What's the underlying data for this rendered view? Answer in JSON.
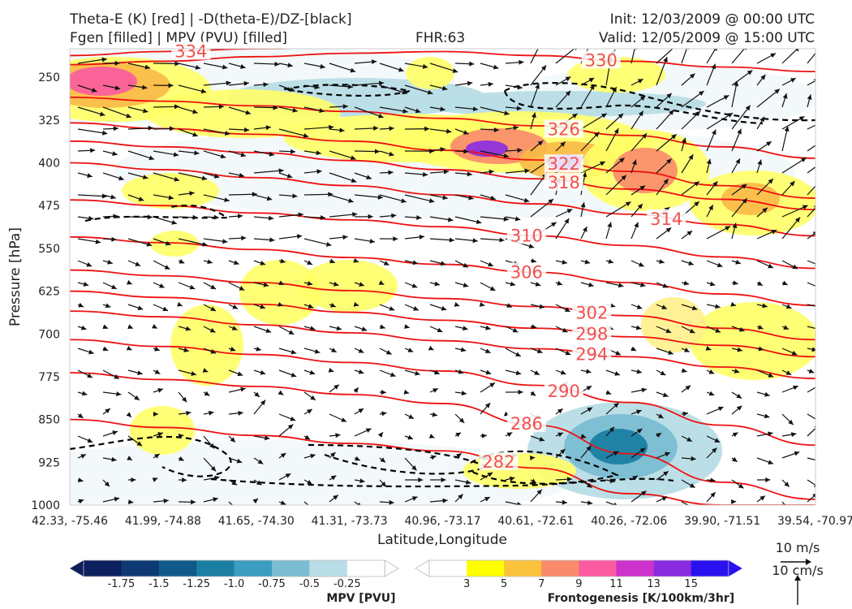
{
  "header": {
    "title_left_1": "Theta-E (K) [red] | -D(theta-E)/DZ-[black]",
    "title_left_2": "Fgen [filled] | MPV (PVU) [filled]",
    "fhr": "FHR:63",
    "init": "Init: 12/03/2009 @ 00:00 UTC",
    "valid": "Valid: 12/05/2009 @ 15:00 UTC"
  },
  "colors": {
    "theta_e": "#ee1111",
    "stability": "#000000",
    "wind_arrow": "#111111",
    "mpv": [
      "#0c1f5e",
      "#0d3a73",
      "#0f5a8a",
      "#1b7fa3",
      "#3b9dbf",
      "#7bbdd3",
      "#b8dde6",
      "#f2f8fa"
    ],
    "fgen": [
      "#ffff66",
      "#fff08a",
      "#fbb947",
      "#fb8a6b",
      "#fb5aa1",
      "#cc33cc",
      "#8a2be2",
      "#3a1fe6"
    ]
  },
  "chart_data": {
    "type": "cross-section",
    "ylabel": "Pressure [hPa]",
    "xlabel": "Latitude,Longitude",
    "ylim": [
      1000,
      200
    ],
    "y_ticks": [
      250,
      325,
      400,
      475,
      550,
      625,
      700,
      775,
      850,
      925,
      1000
    ],
    "x_ticks": [
      "42.33, -75.46",
      "41.99, -74.88",
      "41.65, -74.30",
      "41.31, -73.73",
      "40.96, -73.17",
      "40.61, -72.61",
      "40.26, -72.06",
      "39.90, -71.51",
      "39.54, -70.97"
    ],
    "theta_e_isentropes": [
      {
        "label": "334",
        "levels": [
          212,
          205,
          200,
          198,
          196,
          194,
          192,
          190,
          188
        ]
      },
      {
        "label": "330",
        "levels": [
          228,
          222,
          214,
          208,
          205,
          212,
          222,
          232,
          240
        ]
      },
      {
        "label": "326",
        "levels": [
          285,
          292,
          300,
          310,
          322,
          335,
          352,
          372,
          392
        ]
      },
      {
        "label": "322",
        "levels": [
          330,
          340,
          350,
          362,
          378,
          395,
          415,
          440,
          462
        ]
      },
      {
        "label": "318",
        "levels": [
          362,
          372,
          382,
          396,
          412,
          428,
          446,
          464,
          482
        ]
      },
      {
        "label": "314",
        "levels": [
          400,
          412,
          426,
          440,
          456,
          472,
          490,
          508,
          528
        ]
      },
      {
        "label": "310",
        "levels": [
          465,
          475,
          488,
          500,
          512,
          528,
          545,
          565,
          585
        ]
      },
      {
        "label": "306",
        "levels": [
          530,
          540,
          552,
          566,
          578,
          592,
          610,
          630,
          650
        ]
      },
      {
        "label": "302",
        "levels": [
          588,
          598,
          610,
          624,
          638,
          652,
          668,
          690,
          710
        ]
      },
      {
        "label": "298",
        "levels": [
          625,
          636,
          648,
          662,
          676,
          690,
          705,
          720,
          740
        ]
      },
      {
        "label": "294",
        "levels": [
          660,
          670,
          684,
          698,
          712,
          726,
          740,
          758,
          778
        ]
      },
      {
        "label": "290",
        "levels": [
          710,
          722,
          736,
          750,
          765,
          790,
          820,
          860,
          895
        ]
      },
      {
        "label": "286",
        "levels": [
          768,
          780,
          792,
          806,
          822,
          860,
          910,
          960,
          990
        ]
      },
      {
        "label": "282",
        "levels": [
          850,
          864,
          878,
          892,
          905,
          935,
          980,
          1000,
          1000
        ]
      }
    ],
    "stability_contours": "dashed black",
    "legend_mpv": {
      "label": "MPV [PVU]",
      "ticks": [
        "-1.75",
        "-1.5",
        "-1.25",
        "-1.0",
        "-0.75",
        "-0.5",
        "-0.25"
      ]
    },
    "legend_fgen": {
      "label": "Frontogenesis [K/100km/3hr]",
      "ticks": [
        "3",
        "5",
        "7",
        "9",
        "11",
        "13",
        "15"
      ]
    },
    "wind_reference": [
      "10 m/s",
      "10 cm/s"
    ]
  }
}
